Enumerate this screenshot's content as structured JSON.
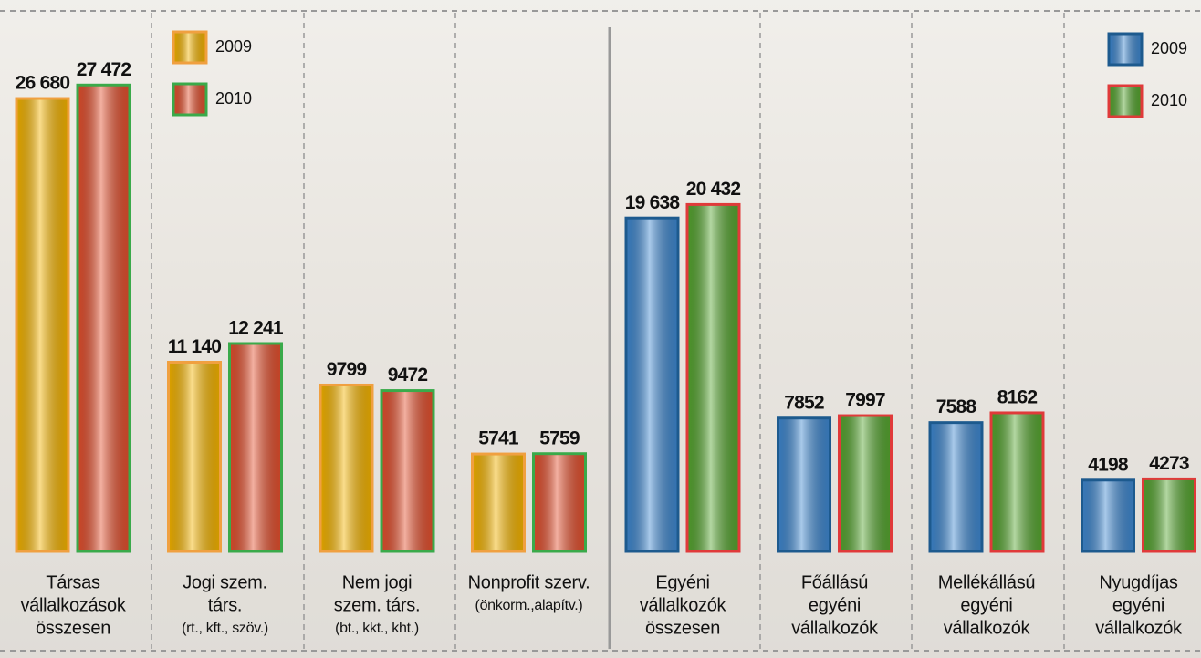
{
  "chart_data": [
    {
      "type": "bar",
      "categories": [
        [
          "Társas",
          "vállalkozások",
          "összesen"
        ],
        [
          "Jogi szem.",
          "társ."
        ],
        [
          "Nem jogi",
          "szem. társ."
        ],
        [
          "Nonprofit szerv."
        ]
      ],
      "category_notes": [
        null,
        "(rt., kft., szöv.)",
        "(bt., kkt., kht.)",
        "(önkorm.,alapítv.)"
      ],
      "series": [
        {
          "name": "2009",
          "color": "#f5b400",
          "edgecolor": "#f0a040",
          "values": [
            26680,
            11140,
            9799,
            5741
          ],
          "value_labels": [
            "26 680",
            "11 140",
            "9799",
            "5741"
          ]
        },
        {
          "name": "2010",
          "color": "#e4502e",
          "edgecolor": "#3aaa4a",
          "values": [
            27472,
            12241,
            9472,
            5759
          ],
          "value_labels": [
            "27 472",
            "12 241",
            "9472",
            "5759"
          ]
        }
      ],
      "ylim": [
        0,
        32480
      ]
    },
    {
      "type": "bar",
      "categories": [
        [
          "Egyéni",
          "vállalkozók",
          "összesen"
        ],
        [
          "Főállású",
          "egyéni",
          "vállalkozók"
        ],
        [
          "Mellékállású",
          "egyéni",
          "vállalkozók"
        ],
        [
          "Nyugdíjas",
          "egyéni",
          "vállalkozók"
        ]
      ],
      "category_notes": [
        null,
        null,
        null,
        null
      ],
      "series": [
        {
          "name": "2009",
          "color": "#3f88d0",
          "edgecolor": "#1d5a8e",
          "values": [
            19638,
            7852,
            7588,
            4198
          ],
          "value_labels": [
            "19 638",
            "7852",
            "7588",
            "4198"
          ]
        },
        {
          "name": "2010",
          "color": "#56a630",
          "edgecolor": "#e03a3a",
          "values": [
            20432,
            7997,
            8162,
            4273
          ],
          "value_labels": [
            "20 432",
            "7997",
            "8162",
            "4273"
          ]
        }
      ],
      "ylim": [
        0,
        32480
      ]
    }
  ]
}
